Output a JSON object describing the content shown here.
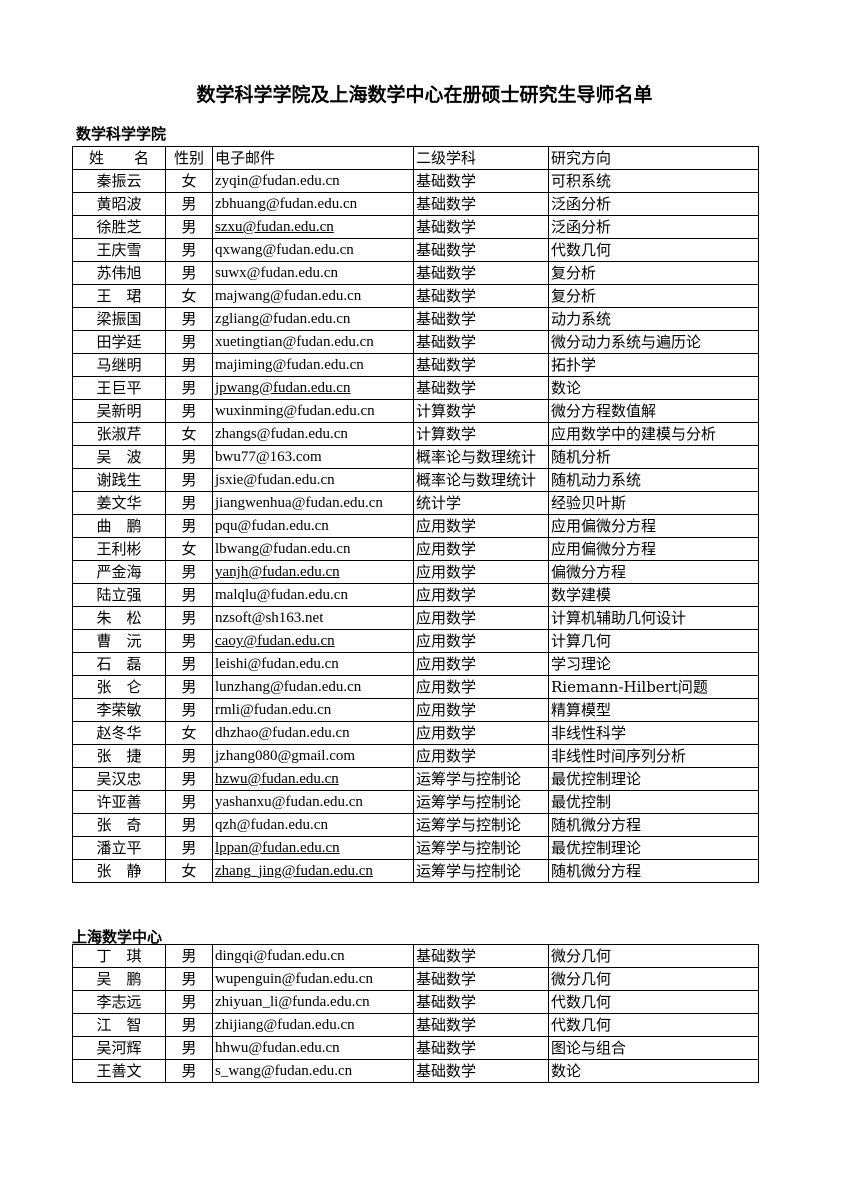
{
  "title": "数学科学学院及上海数学中心在册硕士研究生导师名单",
  "columns": [
    "姓　　名",
    "性别",
    "电子邮件",
    "二级学科",
    "研究方向"
  ],
  "sections": [
    {
      "heading": "数学科学学院",
      "rows": [
        {
          "name": "秦振云",
          "gender": "女",
          "email": "zyqin@fudan.edu.cn",
          "discipline": "基础数学",
          "direction": "可积系统",
          "link": false
        },
        {
          "name": "黄昭波",
          "gender": "男",
          "email": "zbhuang@fudan.edu.cn",
          "discipline": "基础数学",
          "direction": "泛函分析",
          "link": false
        },
        {
          "name": "徐胜芝",
          "gender": "男",
          "email": "szxu@fudan.edu.cn",
          "discipline": "基础数学",
          "direction": "泛函分析",
          "link": true
        },
        {
          "name": "王庆雪",
          "gender": "男",
          "email": "qxwang@fudan.edu.cn",
          "discipline": "基础数学",
          "direction": "代数几何",
          "link": false
        },
        {
          "name": "苏伟旭",
          "gender": "男",
          "email": "suwx@fudan.edu.cn",
          "discipline": "基础数学",
          "direction": "复分析",
          "link": false
        },
        {
          "name": "王　珺",
          "gender": "女",
          "email": "majwang@fudan.edu.cn",
          "discipline": "基础数学",
          "direction": "复分析",
          "link": false
        },
        {
          "name": "梁振国",
          "gender": "男",
          "email": "zgliang@fudan.edu.cn",
          "discipline": "基础数学",
          "direction": "动力系统",
          "link": false
        },
        {
          "name": "田学廷",
          "gender": "男",
          "email": "xuetingtian@fudan.edu.cn",
          "discipline": "基础数学",
          "direction": "微分动力系统与遍历论",
          "link": false
        },
        {
          "name": "马继明",
          "gender": "男",
          "email": "majiming@fudan.edu.cn",
          "discipline": "基础数学",
          "direction": "拓扑学",
          "link": false
        },
        {
          "name": "王巨平",
          "gender": "男",
          "email": "jpwang@fudan.edu.cn",
          "discipline": "基础数学",
          "direction": "数论",
          "link": true
        },
        {
          "name": "吴新明",
          "gender": "男",
          "email": "wuxinming@fudan.edu.cn",
          "discipline": "计算数学",
          "direction": "微分方程数值解",
          "link": false
        },
        {
          "name": "张淑芹",
          "gender": "女",
          "email": "zhangs@fudan.edu.cn",
          "discipline": "计算数学",
          "direction": "应用数学中的建模与分析",
          "link": false
        },
        {
          "name": "吴　波",
          "gender": "男",
          "email": "bwu77@163.com",
          "discipline": "概率论与数理统计",
          "direction": "随机分析",
          "link": false
        },
        {
          "name": "谢践生",
          "gender": "男",
          "email": "jsxie@fudan.edu.cn",
          "discipline": "概率论与数理统计",
          "direction": "随机动力系统",
          "link": false
        },
        {
          "name": "姜文华",
          "gender": "男",
          "email": "jiangwenhua@fudan.edu.cn",
          "discipline": "统计学",
          "direction": "经验贝叶斯",
          "link": false
        },
        {
          "name": "曲　鹏",
          "gender": "男",
          "email": "pqu@fudan.edu.cn",
          "discipline": "应用数学",
          "direction": "应用偏微分方程",
          "link": false
        },
        {
          "name": "王利彬",
          "gender": "女",
          "email": "lbwang@fudan.edu.cn",
          "discipline": "应用数学",
          "direction": "应用偏微分方程",
          "link": false
        },
        {
          "name": "严金海",
          "gender": "男",
          "email": "yanjh@fudan.edu.cn",
          "discipline": "应用数学",
          "direction": "偏微分方程",
          "link": true
        },
        {
          "name": "陆立强",
          "gender": "男",
          "email": "malqlu@fudan.edu.cn",
          "discipline": "应用数学",
          "direction": "数学建模",
          "link": false
        },
        {
          "name": "朱　松",
          "gender": "男",
          "email": "nzsoft@sh163.net",
          "discipline": "应用数学",
          "direction": "计算机辅助几何设计",
          "link": false
        },
        {
          "name": "曹　沅",
          "gender": "男",
          "email": "caoy@fudan.edu.cn",
          "discipline": "应用数学",
          "direction": "计算几何",
          "link": true
        },
        {
          "name": "石　磊",
          "gender": "男",
          "email": "leishi@fudan.edu.cn",
          "discipline": "应用数学",
          "direction": "学习理论",
          "link": false
        },
        {
          "name": "张　仑",
          "gender": "男",
          "email": "lunzhang@fudan.edu.cn",
          "discipline": "应用数学",
          "direction": "Riemann-Hilbert问题",
          "link": false
        },
        {
          "name": "李荣敏",
          "gender": "男",
          "email": "rmli@fudan.edu.cn",
          "discipline": "应用数学",
          "direction": "精算模型",
          "link": false
        },
        {
          "name": "赵冬华",
          "gender": "女",
          "email": "dhzhao@fudan.edu.cn",
          "discipline": "应用数学",
          "direction": "非线性科学",
          "link": false
        },
        {
          "name": "张　捷",
          "gender": "男",
          "email": "jzhang080@gmail.com",
          "discipline": "应用数学",
          "direction": "非线性时间序列分析",
          "link": false
        },
        {
          "name": "吴汉忠",
          "gender": "男",
          "email": "hzwu@fudan.edu.cn",
          "discipline": "运筹学与控制论",
          "direction": "最优控制理论",
          "link": true
        },
        {
          "name": "许亚善",
          "gender": "男",
          "email": "yashanxu@fudan.edu.cn",
          "discipline": "运筹学与控制论",
          "direction": "最优控制",
          "link": false
        },
        {
          "name": "张　奇",
          "gender": "男",
          "email": "qzh@fudan.edu.cn",
          "discipline": "运筹学与控制论",
          "direction": "随机微分方程",
          "link": false
        },
        {
          "name": "潘立平",
          "gender": "男",
          "email": "lppan@fudan.edu.cn",
          "discipline": "运筹学与控制论",
          "direction": "最优控制理论",
          "link": true
        },
        {
          "name": "张　静",
          "gender": "女",
          "email": "zhang_jing@fudan.edu.cn",
          "discipline": "运筹学与控制论",
          "direction": "随机微分方程",
          "link": true
        }
      ]
    },
    {
      "heading": "上海数学中心",
      "rows": [
        {
          "name": "丁　琪",
          "gender": "男",
          "email": "dingqi@fudan.edu.cn",
          "discipline": "基础数学",
          "direction": "微分几何",
          "link": false
        },
        {
          "name": "吴　鹏",
          "gender": "男",
          "email": "wupenguin@fudan.edu.cn",
          "discipline": "基础数学",
          "direction": "微分几何",
          "link": false
        },
        {
          "name": "李志远",
          "gender": "男",
          "email": "zhiyuan_li@funda.edu.cn",
          "discipline": "基础数学",
          "direction": "代数几何",
          "link": false
        },
        {
          "name": "江　智",
          "gender": "男",
          "email": "zhijiang@fudan.edu.cn",
          "discipline": "基础数学",
          "direction": "代数几何",
          "link": false
        },
        {
          "name": "吴河辉",
          "gender": "男",
          "email": "hhwu@fudan.edu.cn",
          "discipline": "基础数学",
          "direction": "图论与组合",
          "link": false
        },
        {
          "name": "王善文",
          "gender": "男",
          "email": "s_wang@fudan.edu.cn",
          "discipline": "基础数学",
          "direction": "数论",
          "link": false
        }
      ]
    }
  ]
}
